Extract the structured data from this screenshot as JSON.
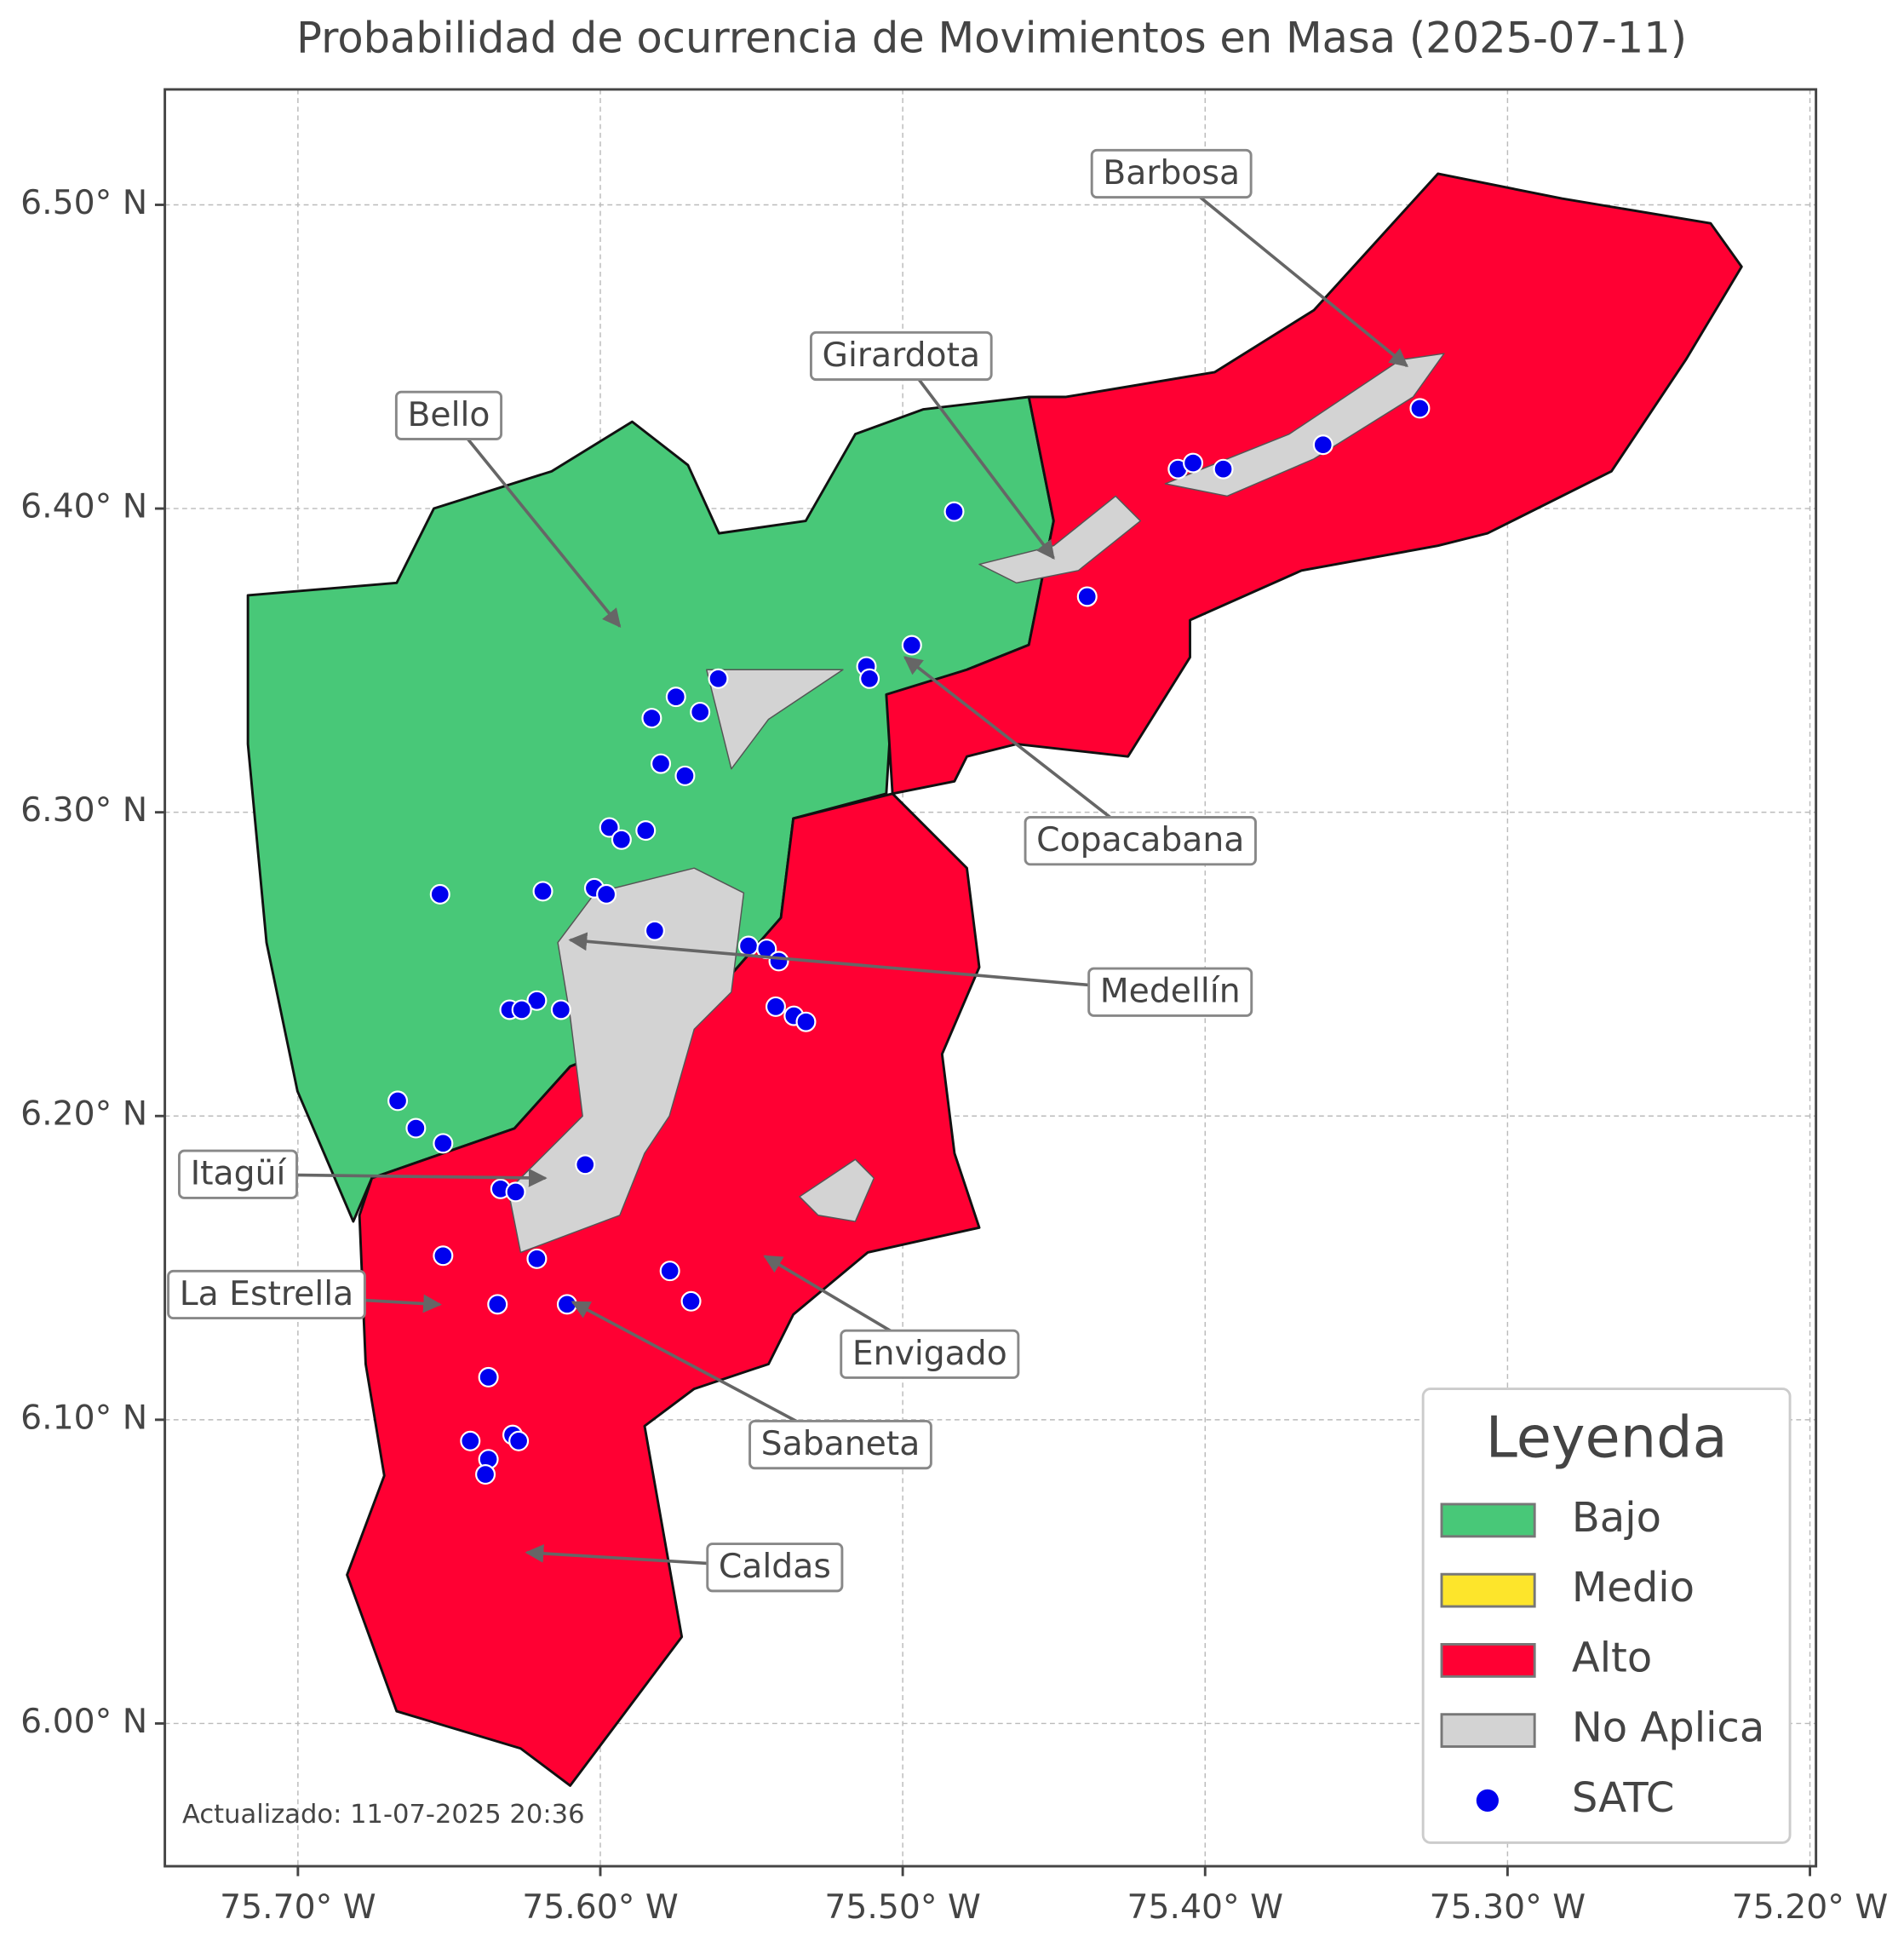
{
  "title": "Probabilidad de ocurrencia de Movimientos en Masa (2025-07-11)",
  "xlim": [
    -75.744,
    -75.198
  ],
  "ylim": [
    5.953,
    6.538
  ],
  "xticks": [
    {
      "value": -75.7,
      "label": "75.70° W"
    },
    {
      "value": -75.6,
      "label": "75.60° W"
    },
    {
      "value": -75.5,
      "label": "75.50° W"
    },
    {
      "value": -75.4,
      "label": "75.40° W"
    },
    {
      "value": -75.3,
      "label": "75.30° W"
    },
    {
      "value": -75.2,
      "label": "75.20° W"
    }
  ],
  "yticks": [
    {
      "value": 6.0,
      "label": "6.00° N"
    },
    {
      "value": 6.1,
      "label": "6.10° N"
    },
    {
      "value": 6.2,
      "label": "6.20° N"
    },
    {
      "value": 6.3,
      "label": "6.30° N"
    },
    {
      "value": 6.4,
      "label": "6.40° N"
    },
    {
      "value": 6.5,
      "label": "6.50° N"
    }
  ],
  "grid": true,
  "legend": {
    "title": "Leyenda",
    "position": "lower right",
    "items": [
      {
        "label": "Bajo",
        "color": "#48c878"
      },
      {
        "label": "Medio",
        "color": "#fde52b"
      },
      {
        "label": "Alto",
        "color": "#ff0033"
      },
      {
        "label": "No Aplica",
        "color": "#d3d3d3"
      },
      {
        "label": "SATC",
        "color": "#0000ee"
      }
    ]
  },
  "annotations": [
    "Barbosa",
    "Girardota",
    "Bello",
    "Copacabana",
    "Medellín",
    "Itagüí",
    "La Estrella",
    "Envigado",
    "Sabaneta",
    "Caldas"
  ],
  "satc_points": {
    "lon": [
      -75.329,
      -75.361,
      -75.394,
      -75.409,
      -75.404,
      -75.483,
      -75.439,
      -75.497,
      -75.512,
      -75.511,
      -75.561,
      -75.575,
      -75.567,
      -75.583,
      -75.58,
      -75.572,
      -75.597,
      -75.593,
      -75.585,
      -75.653,
      -75.619,
      -75.602,
      -75.598,
      -75.582,
      -75.551,
      -75.545,
      -75.541,
      -75.542,
      -75.536,
      -75.532,
      -75.621,
      -75.63,
      -75.626,
      -75.613,
      -75.667,
      -75.661,
      -75.652,
      -75.605,
      -75.633,
      -75.628,
      -75.652,
      -75.621,
      -75.577,
      -75.57,
      -75.634,
      -75.611,
      -75.637,
      -75.643,
      -75.629,
      -75.627,
      -75.637,
      -75.638
    ],
    "lat": [
      6.433,
      6.421,
      6.413,
      6.413,
      6.415,
      6.399,
      6.371,
      6.355,
      6.348,
      6.344,
      6.344,
      6.338,
      6.333,
      6.331,
      6.316,
      6.312,
      6.295,
      6.291,
      6.294,
      6.273,
      6.274,
      6.275,
      6.273,
      6.261,
      6.256,
      6.255,
      6.251,
      6.236,
      6.233,
      6.231,
      6.238,
      6.235,
      6.235,
      6.235,
      6.205,
      6.196,
      6.191,
      6.184,
      6.176,
      6.175,
      6.154,
      6.153,
      6.149,
      6.139,
      6.138,
      6.138,
      6.114,
      6.093,
      6.095,
      6.093,
      6.087,
      6.082
    ]
  },
  "footnote": "Actualizado: 11-07-2025 20:36"
}
